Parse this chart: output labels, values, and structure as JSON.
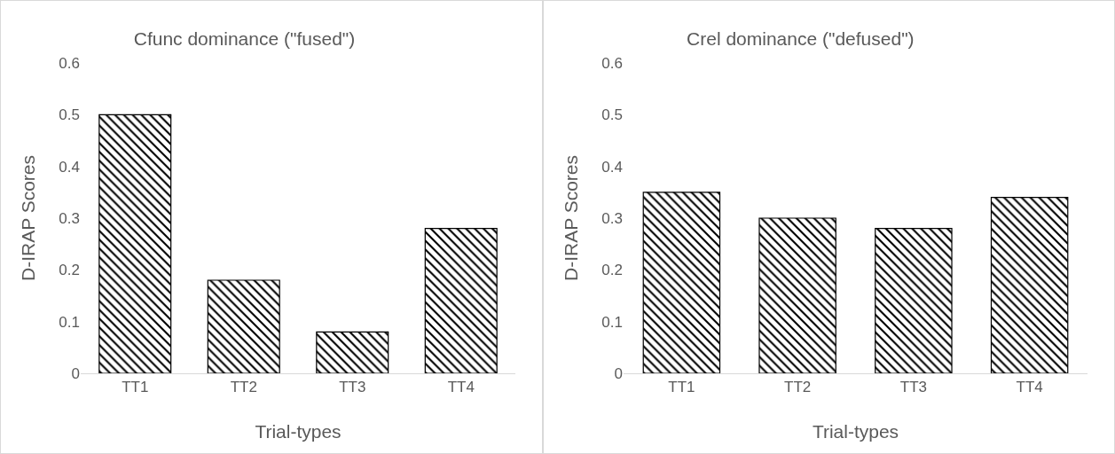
{
  "chart_data": [
    {
      "type": "bar",
      "title": "Cfunc dominance (\"fused\")",
      "xlabel": "Trial-types",
      "ylabel": "D-IRAP Scores",
      "categories": [
        "TT1",
        "TT2",
        "TT3",
        "TT4"
      ],
      "values": [
        0.5,
        0.18,
        0.08,
        0.28
      ],
      "color": "#000000",
      "ylim": [
        0,
        0.6
      ],
      "yticks": [
        0,
        0.1,
        0.2,
        0.3,
        0.4,
        0.5,
        0.6
      ],
      "grid": false,
      "legend": false
    },
    {
      "type": "bar",
      "title": "Crel dominance (\"defused\")",
      "xlabel": "Trial-types",
      "ylabel": "D-IRAP Scores",
      "categories": [
        "TT1",
        "TT2",
        "TT3",
        "TT4"
      ],
      "values": [
        0.35,
        0.3,
        0.28,
        0.34
      ],
      "color": "#000000",
      "ylim": [
        0,
        0.6
      ],
      "yticks": [
        0,
        0.1,
        0.2,
        0.3,
        0.4,
        0.5,
        0.6
      ],
      "grid": false,
      "legend": false
    }
  ]
}
